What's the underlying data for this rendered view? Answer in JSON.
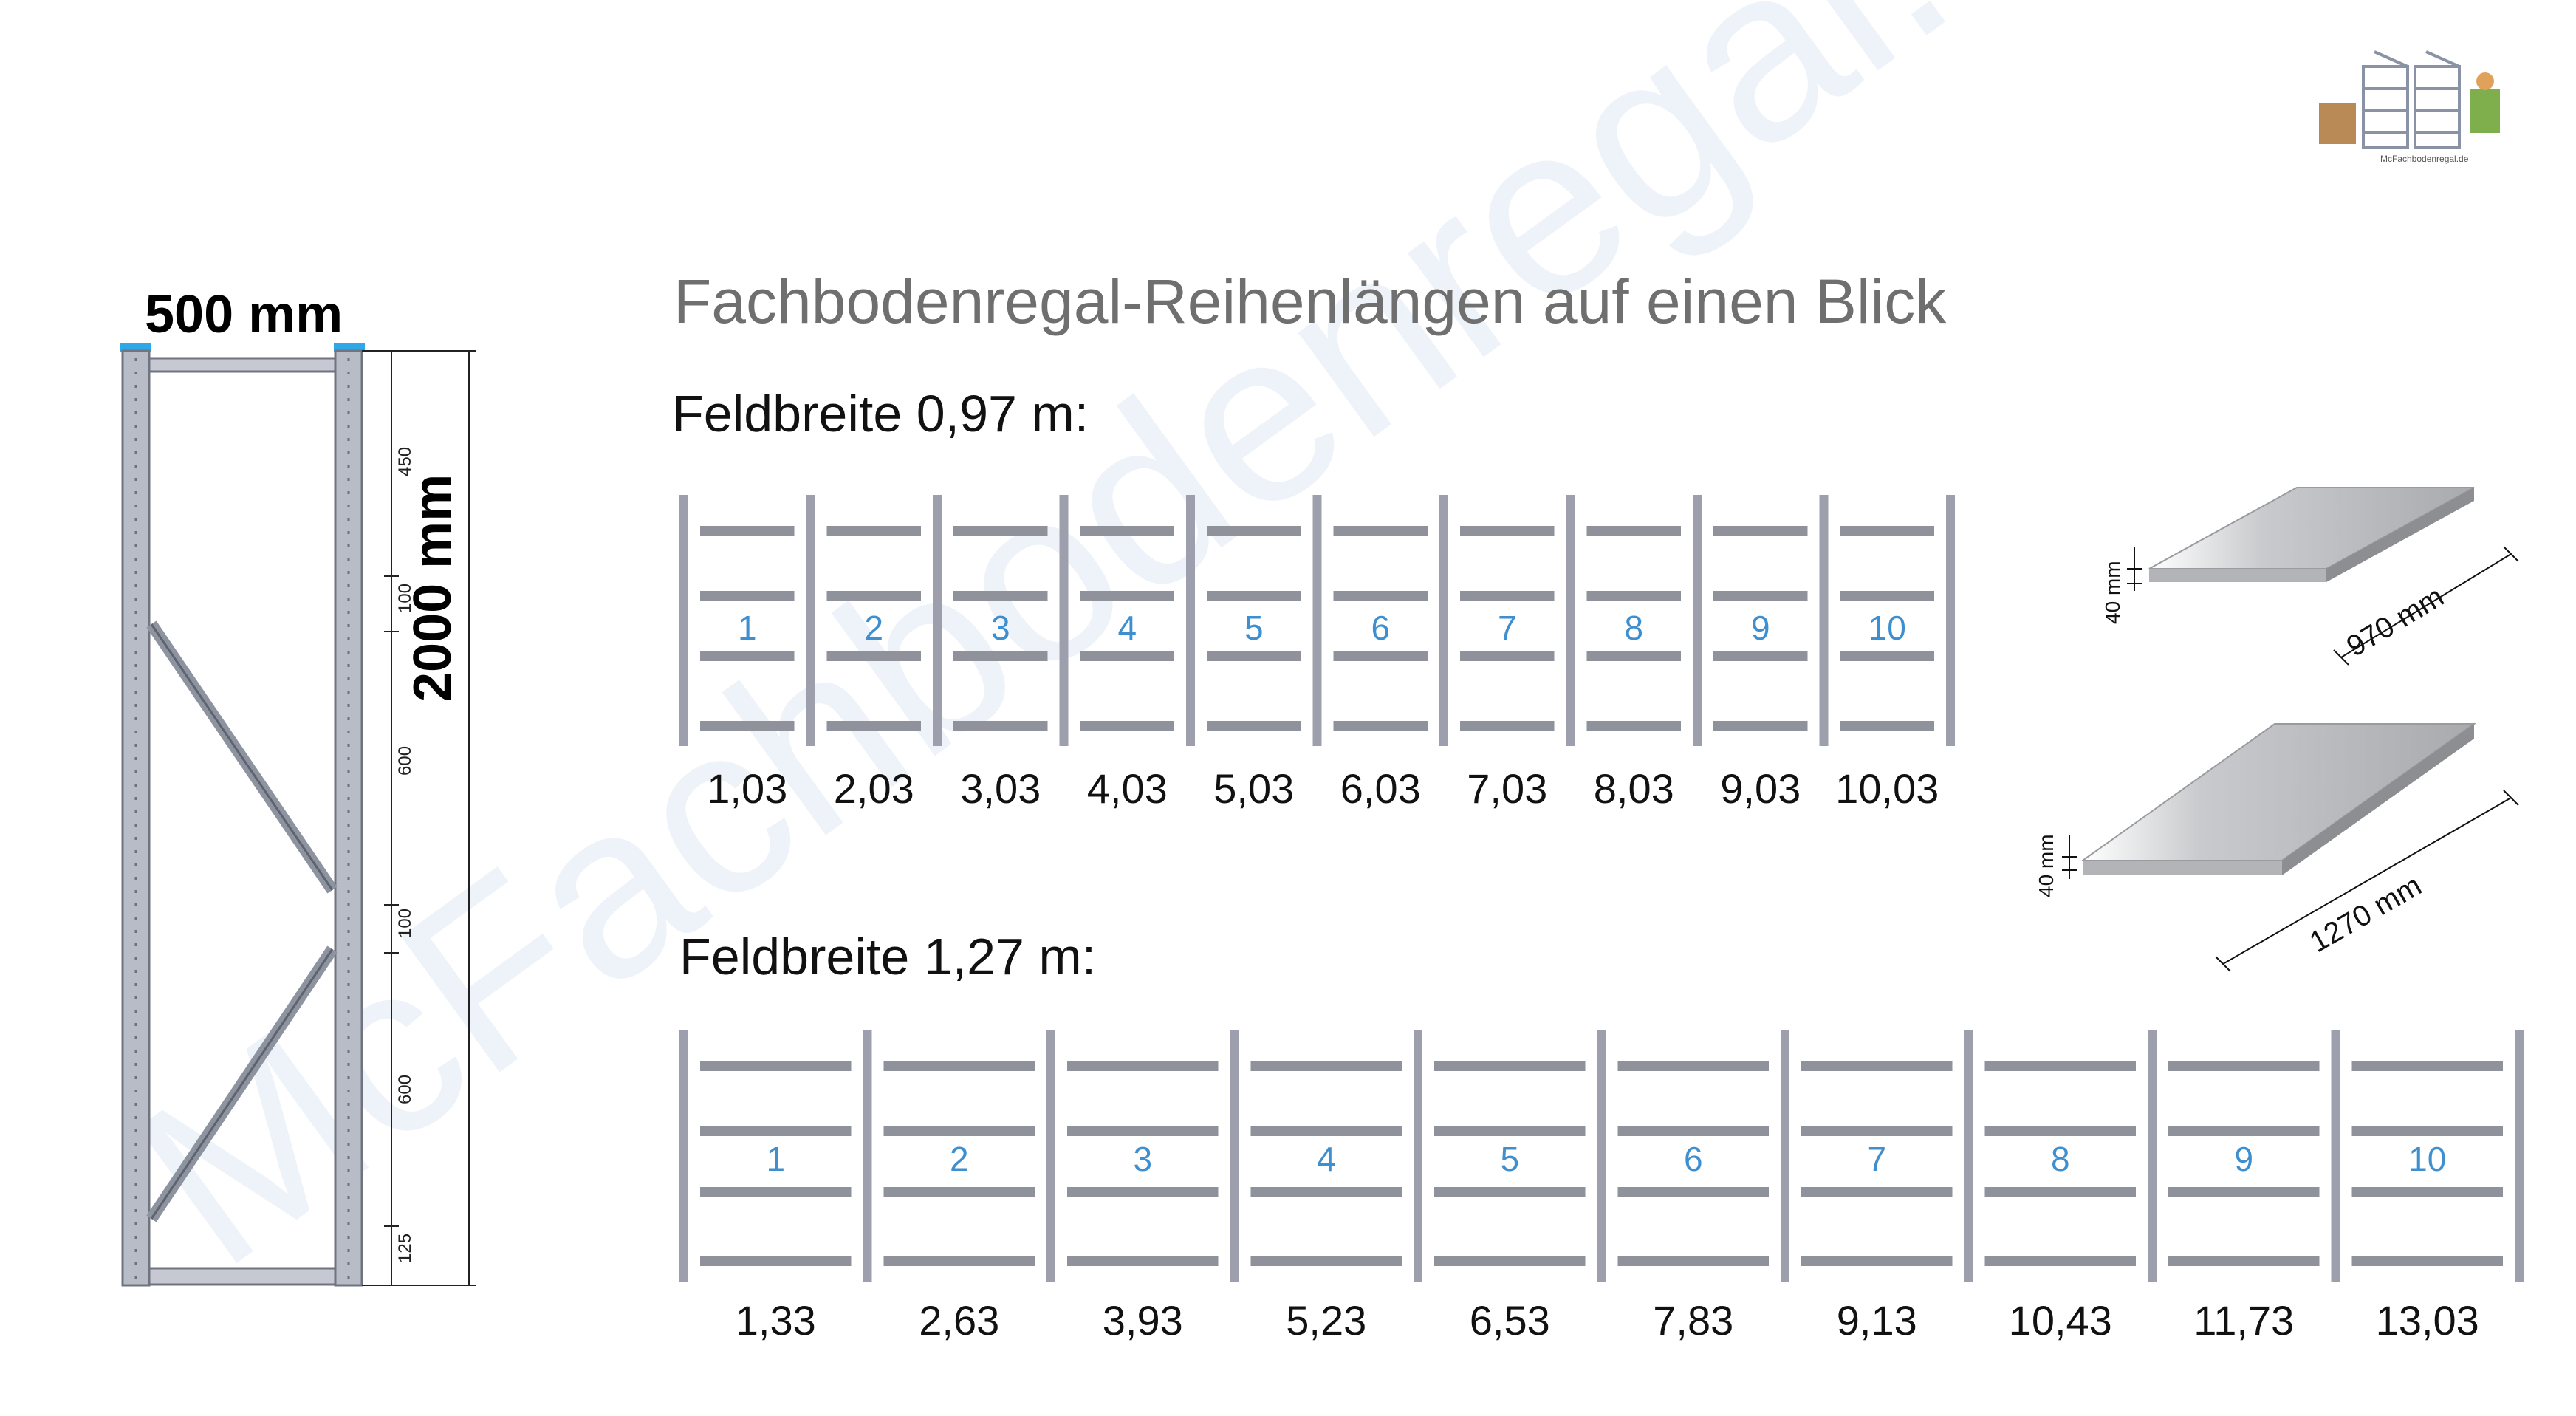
{
  "title": "Fachbodenregal-Reihenlängen auf einen Blick",
  "logo_caption": "McFachbodenregal.de",
  "watermark": "McFachbodenregal.de",
  "frame": {
    "depth_label": "500 mm",
    "height_label": "2000 mm",
    "segment_dims": [
      "450",
      "100",
      "600",
      "100",
      "600",
      "125"
    ]
  },
  "sections": [
    {
      "heading": "Feldbreite 0,97 m:",
      "field_numbers": [
        "1",
        "2",
        "3",
        "4",
        "5",
        "6",
        "7",
        "8",
        "9",
        "10"
      ],
      "row_lengths": [
        "1,03",
        "2,03",
        "3,03",
        "4,03",
        "5,03",
        "6,03",
        "7,03",
        "8,03",
        "9,03",
        "10,03"
      ]
    },
    {
      "heading": "Feldbreite 1,27 m:",
      "field_numbers": [
        "1",
        "2",
        "3",
        "4",
        "5",
        "6",
        "7",
        "8",
        "9",
        "10"
      ],
      "row_lengths": [
        "1,33",
        "2,63",
        "3,93",
        "5,23",
        "6,53",
        "7,83",
        "9,13",
        "10,43",
        "11,73",
        "13,03"
      ]
    }
  ],
  "shelves": [
    {
      "length_label": "970 mm",
      "height_label": "40 mm"
    },
    {
      "length_label": "1270 mm",
      "height_label": "40 mm"
    }
  ],
  "colors": {
    "upright": "#9da0ac",
    "shelf": "#8f919b",
    "number": "#3e8fd0",
    "accent_blue": "#2fa8e8"
  }
}
